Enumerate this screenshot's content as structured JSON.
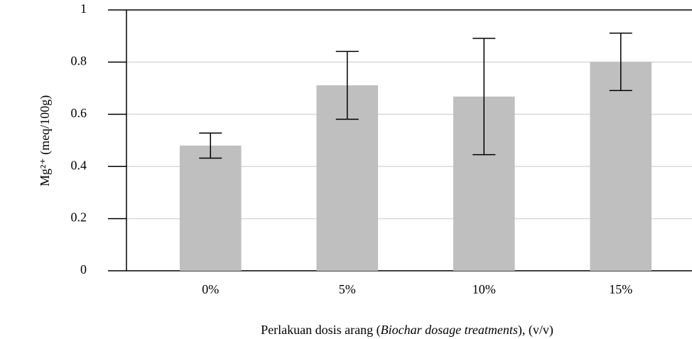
{
  "chart_data": {
    "type": "bar",
    "categories": [
      "0%",
      "5%",
      "10%",
      "15%"
    ],
    "values": [
      0.48,
      0.711,
      0.668,
      0.801
    ],
    "errors": [
      0.048,
      0.13,
      0.223,
      0.11
    ],
    "color": "#bfbfbf",
    "ylim": [
      0,
      1
    ],
    "yticks": [
      0,
      0.2,
      0.4,
      0.6,
      0.8,
      1
    ],
    "grid": true,
    "y_label": "Mg²⁺ (meq/100g)",
    "x_label": [
      "Perlakuan dosis arang (",
      "Biochar dosage treatments",
      "), (v/v)"
    ]
  }
}
